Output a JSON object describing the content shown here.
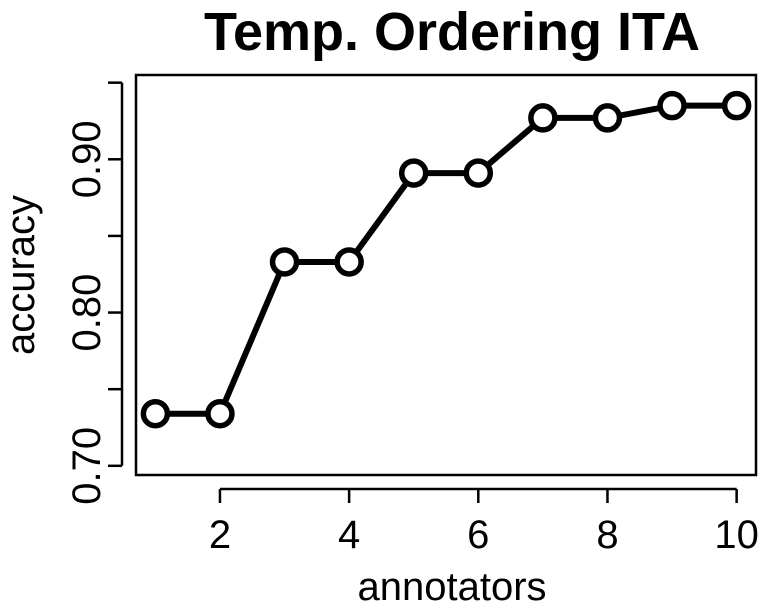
{
  "chart_data": {
    "type": "line",
    "title": "Temp. Ordering ITA",
    "xlabel": "annotators",
    "ylabel": "accuracy",
    "x": [
      1,
      2,
      3,
      4,
      5,
      6,
      7,
      8,
      9,
      10
    ],
    "series": [
      {
        "values": [
          0.734,
          0.734,
          0.833,
          0.833,
          0.891,
          0.891,
          0.927,
          0.927,
          0.935,
          0.935
        ]
      }
    ],
    "xlim": [
      0.7,
      10.3
    ],
    "ylim": [
      0.694,
      0.955
    ],
    "x_ticks": [
      2,
      4,
      6,
      8,
      10
    ],
    "x_tick_labels": [
      "2",
      "4",
      "6",
      "8",
      "10"
    ],
    "y_ticks": [
      0.7,
      0.75,
      0.8,
      0.85,
      0.9,
      0.95
    ],
    "y_tick_labels": [
      "0.70",
      "",
      "0.80",
      "",
      "0.90",
      ""
    ],
    "grid": false,
    "legend": "none",
    "colors": {
      "line": "#000000",
      "marker_fill": "#ffffff",
      "frame": "#000000"
    }
  }
}
